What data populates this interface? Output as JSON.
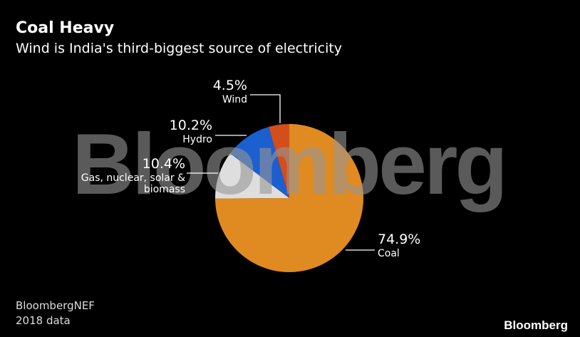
{
  "chart_data": {
    "type": "pie",
    "title": "Coal Heavy",
    "subtitle": "Wind is India's third-biggest source of electricity",
    "categories": [
      "Coal",
      "Gas, nuclear, solar & biomass",
      "Hydro",
      "Wind"
    ],
    "values": [
      74.9,
      10.4,
      10.2,
      4.5
    ],
    "value_labels": [
      "74.9%",
      "10.4%",
      "10.2%",
      "4.5%"
    ],
    "colors": [
      "#e08a22",
      "#dedede",
      "#1c5fd0",
      "#d24f1c"
    ],
    "start_angle": 0,
    "direction": "clockwise",
    "source": "BloombergNEF",
    "note": "2018 data",
    "watermark": "Bloomberg",
    "logo": "Bloomberg"
  }
}
